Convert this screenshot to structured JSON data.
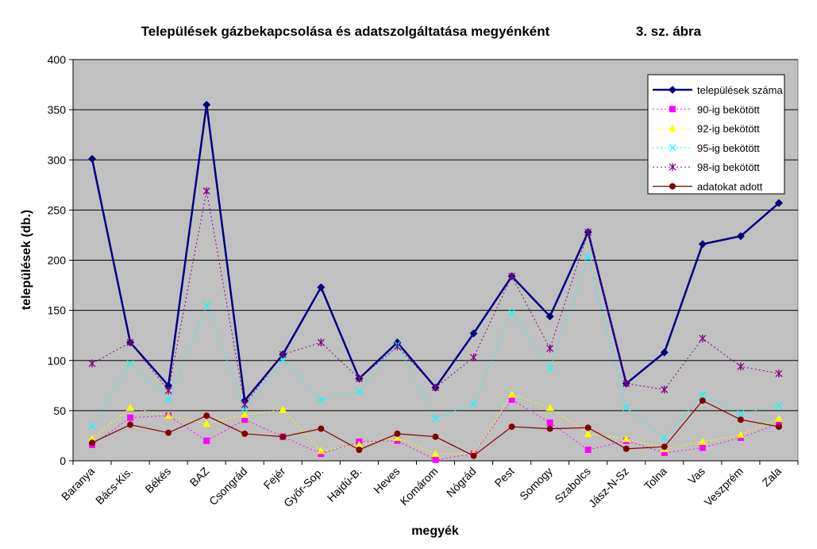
{
  "chart_data": {
    "type": "line",
    "title": "Települések gázbekapcsolása és adatszolgáltatása megyénként",
    "subtitle": "3. sz. ábra",
    "xlabel": "megyék",
    "ylabel": "települések (db.)",
    "ylim": [
      0,
      400
    ],
    "yticks": [
      0,
      50,
      100,
      150,
      200,
      250,
      300,
      350,
      400
    ],
    "grid": true,
    "legend_position": "top-right",
    "plot_bg": "#c0c0c0",
    "categories": [
      "Baranya",
      "Bács-Kis.",
      "Békés",
      "BAZ",
      "Csongrád",
      "Fejér",
      "Győr-Sop.",
      "Hajdú-B.",
      "Heves",
      "Komárom",
      "Nógrád",
      "Pest",
      "Somogy",
      "Szabolcs",
      "Jász-N-Sz",
      "Tolna",
      "Vas",
      "Veszprém",
      "Zala"
    ],
    "series": [
      {
        "name": "települések száma",
        "color": "#000080",
        "marker": "diamond",
        "style": "solid-thick",
        "values": [
          301,
          118,
          75,
          355,
          60,
          106,
          173,
          82,
          118,
          73,
          127,
          184,
          144,
          228,
          77,
          108,
          216,
          224,
          257
        ]
      },
      {
        "name": "90-ig bekötött",
        "color": "#ff00ff",
        "marker": "square",
        "style": "dotted",
        "values": [
          16,
          43,
          45,
          20,
          41,
          24,
          7,
          19,
          20,
          1,
          7,
          61,
          38,
          11,
          20,
          8,
          13,
          23,
          37
        ]
      },
      {
        "name": "92-ig bekötött",
        "color": "#ffff00",
        "marker": "triangle",
        "style": "dotted",
        "values": [
          22,
          53,
          45,
          37,
          46,
          51,
          10,
          16,
          23,
          7,
          7,
          66,
          53,
          27,
          22,
          12,
          19,
          26,
          42
        ]
      },
      {
        "name": "95-ig bekötött",
        "color": "#00ffff",
        "marker": "x",
        "style": "dotted",
        "values": [
          34,
          97,
          61,
          155,
          52,
          101,
          61,
          69,
          116,
          42,
          57,
          148,
          92,
          203,
          53,
          23,
          66,
          47,
          55
        ]
      },
      {
        "name": "98-ig bekötött",
        "color": "#800080",
        "marker": "star",
        "style": "dotted",
        "values": [
          97,
          118,
          70,
          269,
          56,
          106,
          118,
          82,
          114,
          73,
          103,
          184,
          112,
          228,
          77,
          71,
          122,
          94,
          87
        ]
      },
      {
        "name": "adatokat adott",
        "color": "#800000",
        "marker": "circle",
        "style": "solid-thin",
        "values": [
          18,
          36,
          28,
          45,
          27,
          24,
          32,
          11,
          27,
          24,
          5,
          34,
          32,
          33,
          12,
          14,
          60,
          41,
          34
        ]
      }
    ]
  }
}
